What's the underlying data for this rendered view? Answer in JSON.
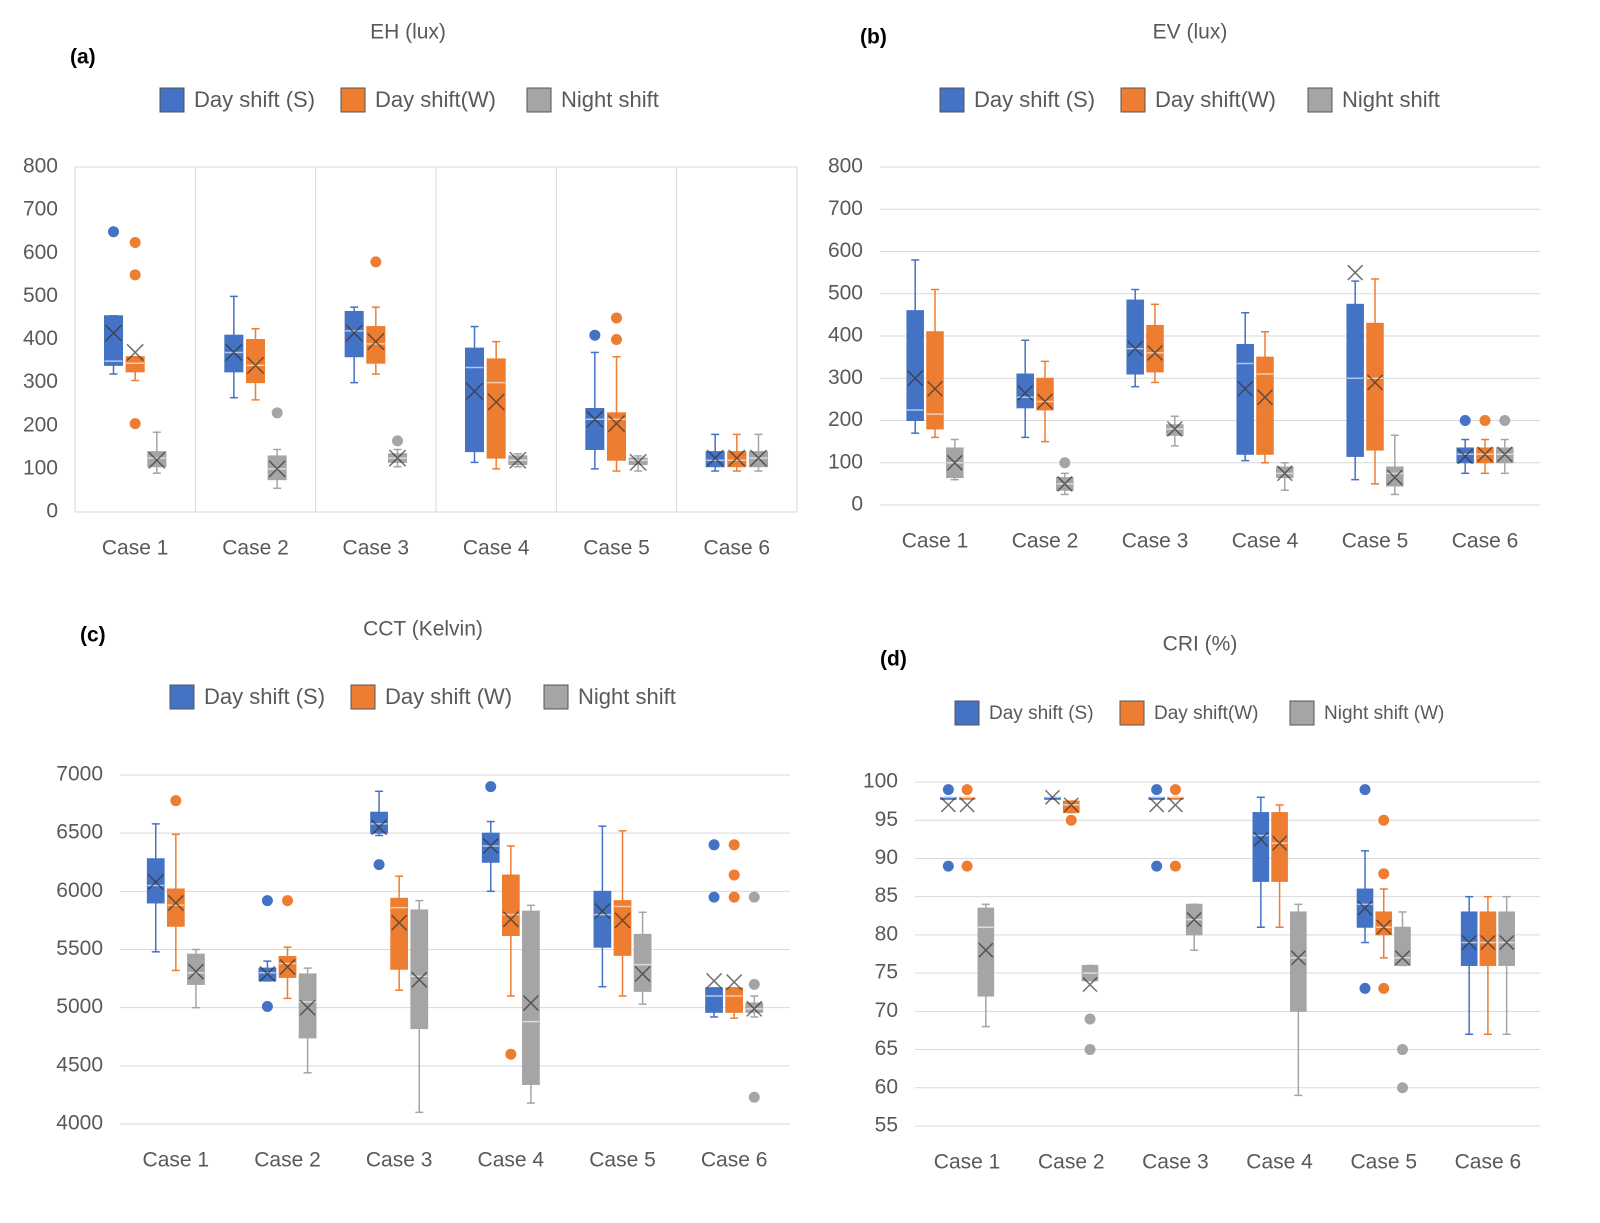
{
  "chart_data": [
    {
      "type": "box",
      "label": "(a)",
      "title": "EH (lux)",
      "grid": "x",
      "border": true,
      "categories": [
        "Case 1",
        "Case 2",
        "Case 3",
        "Case 4",
        "Case 5",
        "Case 6"
      ],
      "ylim": [
        0,
        800
      ],
      "yticks": [
        0,
        100,
        200,
        300,
        400,
        500,
        600,
        700,
        800
      ],
      "series": [
        {
          "name": "Day shift (S)",
          "color": "#4472c4",
          "min": [
            320,
            265,
            300,
            115,
            100,
            95
          ],
          "q1": [
            340,
            325,
            360,
            140,
            145,
            105
          ],
          "median": [
            350,
            370,
            420,
            335,
            215,
            120
          ],
          "q3": [
            455,
            410,
            465,
            380,
            240,
            140
          ],
          "max": [
            455,
            500,
            475,
            430,
            370,
            180
          ],
          "mean": [
            415,
            370,
            415,
            280,
            215,
            125
          ],
          "outliers": [
            [
              650
            ],
            [],
            [],
            [],
            [
              410
            ],
            []
          ]
        },
        {
          "name": "Day shift(W)",
          "color": "#ed7d31",
          "min": [
            305,
            260,
            320,
            100,
            95,
            95
          ],
          "q1": [
            325,
            300,
            345,
            125,
            120,
            105
          ],
          "median": [
            345,
            340,
            390,
            300,
            215,
            120
          ],
          "q3": [
            360,
            400,
            430,
            355,
            230,
            140
          ],
          "max": [
            360,
            425,
            475,
            395,
            360,
            180
          ],
          "mean": [
            370,
            340,
            395,
            255,
            205,
            125
          ],
          "outliers": [
            [
              205,
              550,
              625
            ],
            [],
            [
              580
            ],
            [],
            [
              400,
              450
            ],
            []
          ]
        },
        {
          "name": "Night shift",
          "color": "#a5a5a5",
          "min": [
            90,
            55,
            105,
            105,
            95,
            95
          ],
          "q1": [
            105,
            75,
            115,
            110,
            110,
            105
          ],
          "median": [
            125,
            100,
            125,
            120,
            120,
            125
          ],
          "q3": [
            140,
            130,
            135,
            130,
            125,
            140
          ],
          "max": [
            185,
            145,
            145,
            135,
            130,
            180
          ],
          "mean": [
            120,
            100,
            125,
            120,
            115,
            125
          ],
          "outliers": [
            [],
            [
              230
            ],
            [
              165
            ],
            [],
            [],
            []
          ]
        }
      ]
    },
    {
      "type": "box",
      "label": "(b)",
      "title": "EV (lux)",
      "grid": "y",
      "border": false,
      "categories": [
        "Case 1",
        "Case 2",
        "Case 3",
        "Case 4",
        "Case 5",
        "Case 6"
      ],
      "ylim": [
        0,
        800
      ],
      "yticks": [
        0,
        100,
        200,
        300,
        400,
        500,
        600,
        700,
        800
      ],
      "series": [
        {
          "name": "Day shift (S)",
          "color": "#4472c4",
          "min": [
            170,
            160,
            280,
            105,
            60,
            75
          ],
          "q1": [
            200,
            230,
            310,
            120,
            115,
            100
          ],
          "median": [
            225,
            255,
            370,
            335,
            300,
            120
          ],
          "q3": [
            460,
            310,
            485,
            380,
            475,
            135
          ],
          "max": [
            580,
            390,
            510,
            455,
            530,
            155
          ],
          "mean": [
            300,
            265,
            370,
            275,
            550,
            115
          ],
          "outliers": [
            [],
            [],
            [],
            [],
            [],
            [
              200
            ]
          ]
        },
        {
          "name": "Day shift(W)",
          "color": "#ed7d31",
          "min": [
            160,
            150,
            290,
            100,
            50,
            75
          ],
          "q1": [
            180,
            225,
            315,
            120,
            130,
            100
          ],
          "median": [
            215,
            245,
            360,
            310,
            300,
            120
          ],
          "q3": [
            410,
            300,
            425,
            350,
            430,
            135
          ],
          "max": [
            510,
            340,
            475,
            410,
            535,
            155
          ],
          "mean": [
            275,
            245,
            360,
            255,
            290,
            120
          ],
          "outliers": [
            [],
            [],
            [],
            [],
            [],
            [
              200
            ]
          ]
        },
        {
          "name": "Night shift",
          "color": "#a5a5a5",
          "min": [
            60,
            25,
            140,
            35,
            25,
            75
          ],
          "q1": [
            65,
            35,
            165,
            65,
            45,
            100
          ],
          "median": [
            100,
            50,
            180,
            75,
            75,
            120
          ],
          "q3": [
            135,
            65,
            190,
            90,
            90,
            135
          ],
          "max": [
            155,
            75,
            210,
            100,
            165,
            155
          ],
          "mean": [
            100,
            50,
            180,
            75,
            65,
            120
          ],
          "outliers": [
            [],
            [
              100
            ],
            [],
            [],
            [],
            [
              200
            ]
          ]
        }
      ]
    },
    {
      "type": "box",
      "label": "(c)",
      "title": "CCT (Kelvin)",
      "grid": "y",
      "border": false,
      "categories": [
        "Case 1",
        "Case 2",
        "Case 3",
        "Case 4",
        "Case 5",
        "Case 6"
      ],
      "ylim": [
        4000,
        7000
      ],
      "yticks": [
        4000,
        4500,
        5000,
        5500,
        6000,
        6500,
        7000
      ],
      "series": [
        {
          "name": "Day shift (S)",
          "color": "#4472c4",
          "min": [
            5480,
            5230,
            6480,
            6000,
            5180,
            4920
          ],
          "q1": [
            5900,
            5230,
            6500,
            6250,
            5520,
            4960
          ],
          "median": [
            6050,
            5300,
            6580,
            6390,
            5800,
            5100
          ],
          "q3": [
            6280,
            5340,
            6680,
            6500,
            6000,
            5170
          ],
          "max": [
            6580,
            5400,
            6860,
            6600,
            6560,
            5170
          ],
          "mean": [
            6080,
            5290,
            6550,
            6390,
            5830,
            5230
          ],
          "outliers": [
            [],
            [
              5010,
              5920
            ],
            [
              6230
            ],
            [
              6900
            ],
            [],
            [
              5950,
              6400
            ]
          ]
        },
        {
          "name": "Day shift (W)",
          "color": "#ed7d31",
          "min": [
            5320,
            5080,
            5150,
            5100,
            5100,
            4910
          ],
          "q1": [
            5700,
            5260,
            5330,
            5620,
            5450,
            4960
          ],
          "median": [
            5880,
            5380,
            5860,
            5800,
            5870,
            5100
          ],
          "q3": [
            6020,
            5440,
            5940,
            6140,
            5920,
            5170
          ],
          "max": [
            6490,
            5520,
            6130,
            6390,
            6520,
            5170
          ],
          "mean": [
            5900,
            5350,
            5730,
            5760,
            5750,
            5220
          ],
          "outliers": [
            [
              6780
            ],
            [
              5920
            ],
            [],
            [
              4600
            ],
            [],
            [
              5950,
              6140,
              6400
            ]
          ]
        },
        {
          "name": "Night shift",
          "color": "#a5a5a5",
          "min": [
            5000,
            4440,
            4100,
            4180,
            5030,
            4920
          ],
          "q1": [
            5200,
            4740,
            4820,
            4340,
            5140,
            4960
          ],
          "median": [
            5300,
            5050,
            5270,
            4880,
            5370,
            4990
          ],
          "q3": [
            5460,
            5290,
            5840,
            5830,
            5630,
            5040
          ],
          "max": [
            5500,
            5340,
            5920,
            5880,
            5820,
            5100
          ],
          "mean": [
            5310,
            5000,
            5240,
            5040,
            5290,
            4990
          ],
          "outliers": [
            [],
            [],
            [],
            [],
            [],
            [
              4230,
              5200,
              5950
            ]
          ]
        }
      ]
    },
    {
      "type": "box",
      "label": "(d)",
      "title": "CRI (%)",
      "grid": "y",
      "border": false,
      "categories": [
        "Case 1",
        "Case 2",
        "Case 3",
        "Case 4",
        "Case 5",
        "Case 6"
      ],
      "ylim": [
        55,
        100
      ],
      "yticks": [
        55,
        60,
        65,
        70,
        75,
        80,
        85,
        90,
        95,
        100
      ],
      "series": [
        {
          "name": "Day shift (S)",
          "color": "#4472c4",
          "min": [
            98,
            98,
            98,
            81,
            79,
            67
          ],
          "q1": [
            98,
            98,
            98,
            87,
            81,
            76
          ],
          "median": [
            98,
            98,
            98,
            93,
            84,
            79
          ],
          "q3": [
            98,
            98,
            98,
            96,
            86,
            83
          ],
          "max": [
            98,
            98,
            98,
            98,
            91,
            85
          ],
          "mean": [
            97,
            98,
            97,
            92.5,
            83.5,
            79
          ],
          "outliers": [
            [
              89,
              99
            ],
            [],
            [
              89,
              99
            ],
            [],
            [
              73,
              99
            ],
            []
          ]
        },
        {
          "name": "Day shift(W)",
          "color": "#ed7d31",
          "min": [
            98,
            96,
            98,
            81,
            77,
            67
          ],
          "q1": [
            98,
            96,
            98,
            87,
            80,
            76
          ],
          "median": [
            98,
            97,
            98,
            92,
            81,
            79
          ],
          "q3": [
            98,
            97.5,
            98,
            96,
            83,
            83
          ],
          "max": [
            98,
            97.5,
            98,
            97,
            86,
            85
          ],
          "mean": [
            97,
            97,
            97,
            92,
            81,
            79
          ],
          "outliers": [
            [
              89,
              99
            ],
            [
              95
            ],
            [
              89,
              99
            ],
            [],
            [
              73,
              88,
              95
            ],
            []
          ]
        },
        {
          "name": "Night shift (W)",
          "color": "#a5a5a5",
          "min": [
            68,
            74,
            78,
            59,
            76,
            67
          ],
          "q1": [
            72,
            74,
            80,
            70,
            76,
            76
          ],
          "median": [
            81,
            75,
            82,
            77,
            77,
            79
          ],
          "q3": [
            83.5,
            76,
            84,
            83,
            81,
            83
          ],
          "max": [
            84,
            76,
            84,
            84,
            83,
            85
          ],
          "mean": [
            78,
            73.5,
            82,
            77,
            77,
            79
          ],
          "outliers": [
            [],
            [
              65,
              69
            ],
            [],
            [],
            [
              60,
              65
            ],
            []
          ]
        }
      ]
    }
  ]
}
